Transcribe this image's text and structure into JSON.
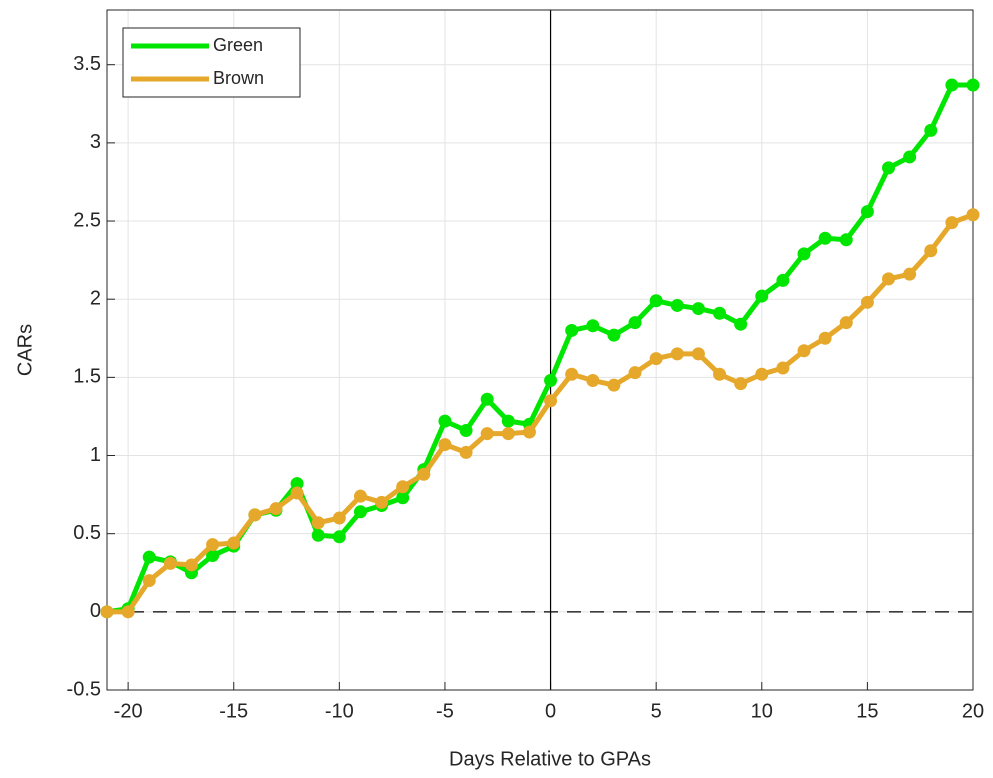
{
  "chart_data": {
    "type": "line",
    "x_label": "Days Relative to GPAs",
    "y_label": "CARs",
    "x": [
      -21,
      -20,
      -19,
      -18,
      -17,
      -16,
      -15,
      -14,
      -13,
      -12,
      -11,
      -10,
      -9,
      -8,
      -7,
      -6,
      -5,
      -4,
      -3,
      -2,
      -1,
      0,
      1,
      2,
      3,
      4,
      5,
      6,
      7,
      8,
      9,
      10,
      11,
      12,
      13,
      14,
      15,
      16,
      17,
      18,
      19,
      20
    ],
    "series": [
      {
        "name": "Green",
        "color": "#00e600",
        "values": [
          0,
          0.02,
          0.35,
          0.32,
          0.25,
          0.36,
          0.42,
          0.62,
          0.65,
          0.82,
          0.49,
          0.48,
          0.64,
          0.68,
          0.73,
          0.91,
          1.22,
          1.16,
          1.36,
          1.22,
          1.2,
          1.48,
          1.8,
          1.83,
          1.77,
          1.85,
          1.99,
          1.96,
          1.94,
          1.91,
          1.84,
          2.02,
          2.12,
          2.29,
          2.39,
          2.38,
          2.56,
          2.84,
          2.91,
          3.08,
          3.37,
          3.37
        ]
      },
      {
        "name": "Brown",
        "color": "#e6a82a",
        "values": [
          0,
          0,
          0.2,
          0.31,
          0.3,
          0.43,
          0.44,
          0.62,
          0.66,
          0.76,
          0.57,
          0.6,
          0.74,
          0.7,
          0.8,
          0.88,
          1.07,
          1.02,
          1.14,
          1.14,
          1.15,
          1.35,
          1.52,
          1.48,
          1.45,
          1.53,
          1.62,
          1.65,
          1.65,
          1.52,
          1.46,
          1.52,
          1.56,
          1.67,
          1.75,
          1.85,
          1.98,
          2.13,
          2.16,
          2.31,
          2.49,
          2.54
        ]
      }
    ],
    "xlim": [
      -21,
      20
    ],
    "ylim": [
      -0.5,
      3.85
    ],
    "xticks": [
      -20,
      -15,
      -10,
      -5,
      0,
      5,
      10,
      15,
      20
    ],
    "yticks": [
      -0.5,
      0,
      0.5,
      1,
      1.5,
      2,
      2.5,
      3,
      3.5
    ],
    "hline": 0,
    "vline": 0,
    "grid": true,
    "legend": "upper-left"
  }
}
